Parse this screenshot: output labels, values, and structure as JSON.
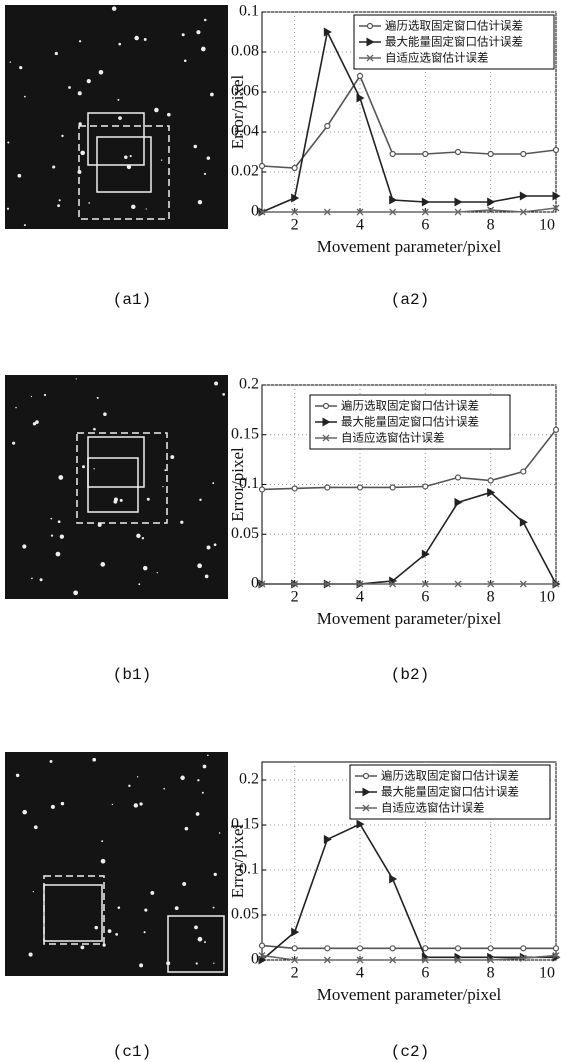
{
  "chart_data": [
    {
      "type": "line",
      "xlabel": "Movement parameter/pixel",
      "ylabel": "Error/pixel",
      "x": [
        1,
        2,
        3,
        4,
        5,
        6,
        7,
        8,
        9,
        10
      ],
      "xlim": [
        1,
        10
      ],
      "xticks": [
        2,
        4,
        6,
        8,
        10
      ],
      "ylim": [
        0,
        0.1
      ],
      "yticks": [
        0,
        0.02,
        0.04,
        0.06,
        0.08,
        0.1
      ],
      "grid": true,
      "legend": "upper right",
      "series": [
        {
          "name": "遍历选取固定窗口估计误差",
          "color": "#555555",
          "marker": "circle",
          "values": [
            0.023,
            0.022,
            0.043,
            0.068,
            0.029,
            0.029,
            0.03,
            0.029,
            0.029,
            0.031
          ]
        },
        {
          "name": "最大能量固定窗口估计误差",
          "color": "#222222",
          "marker": "triangle",
          "values": [
            0,
            0.007,
            0.09,
            0.057,
            0.006,
            0.005,
            0.005,
            0.005,
            0.008,
            0.008
          ]
        },
        {
          "name": "自适应选窗估计误差",
          "color": "#666666",
          "marker": "x",
          "values": [
            0,
            0,
            0,
            0,
            0,
            0,
            0,
            0.001,
            0,
            0.002
          ]
        }
      ]
    },
    {
      "type": "line",
      "xlabel": "Movement parameter/pixel",
      "ylabel": "Error/pixel",
      "x": [
        1,
        2,
        3,
        4,
        5,
        6,
        7,
        8,
        9,
        10
      ],
      "xlim": [
        1,
        10
      ],
      "xticks": [
        2,
        4,
        6,
        8,
        10
      ],
      "ylim": [
        0,
        0.2
      ],
      "yticks": [
        0,
        0.05,
        0.1,
        0.15,
        0.2
      ],
      "grid": true,
      "legend": "upper right",
      "series": [
        {
          "name": "遍历选取固定窗口估计误差",
          "color": "#555555",
          "marker": "circle",
          "values": [
            0.095,
            0.096,
            0.097,
            0.097,
            0.097,
            0.098,
            0.107,
            0.104,
            0.113,
            0.155
          ]
        },
        {
          "name": "最大能量固定窗口估计误差",
          "color": "#222222",
          "marker": "triangle",
          "values": [
            0,
            0,
            0,
            0,
            0.003,
            0.03,
            0.082,
            0.092,
            0.062,
            0
          ]
        },
        {
          "name": "自适应选窗估计误差",
          "color": "#666666",
          "marker": "x",
          "values": [
            0,
            0,
            0,
            0,
            0,
            0,
            0,
            0,
            0,
            0
          ]
        }
      ]
    },
    {
      "type": "line",
      "xlabel": "Movement parameter/pixel",
      "ylabel": "Error/pixel",
      "x": [
        1,
        2,
        3,
        4,
        5,
        6,
        7,
        8,
        9,
        10
      ],
      "xlim": [
        1,
        10
      ],
      "xticks": [
        2,
        4,
        6,
        8,
        10
      ],
      "ylim": [
        0,
        0.22
      ],
      "yticks": [
        0,
        0.05,
        0.1,
        0.15,
        0.2
      ],
      "grid": true,
      "legend": "upper right",
      "series": [
        {
          "name": "遍历选取固定窗口估计误差",
          "color": "#555555",
          "marker": "circle",
          "values": [
            0.016,
            0.013,
            0.013,
            0.013,
            0.013,
            0.013,
            0.013,
            0.013,
            0.013,
            0.013
          ]
        },
        {
          "name": "最大能量固定窗口估计误差",
          "color": "#222222",
          "marker": "triangle",
          "values": [
            0,
            0.031,
            0.134,
            0.151,
            0.09,
            0.003,
            0.003,
            0.003,
            0.003,
            0.003
          ]
        },
        {
          "name": "自适应选窗估计误差",
          "color": "#666666",
          "marker": "x",
          "values": [
            0.005,
            0,
            0,
            0,
            0,
            0,
            0,
            0,
            0.002,
            0.005
          ]
        }
      ]
    }
  ],
  "captions": [
    [
      "(a1)",
      "(a2)"
    ],
    [
      "(b1)",
      "(b2)"
    ],
    [
      "(c1)",
      "(c2)"
    ]
  ]
}
